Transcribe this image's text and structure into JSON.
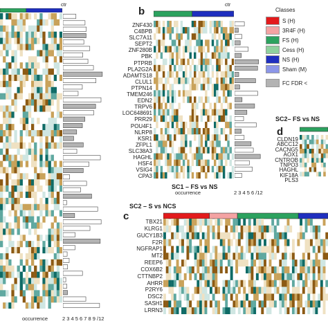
{
  "panel_b": {
    "letter": "b",
    "title": "SC1 – FS vs NS",
    "ctr_label": "ctr",
    "genes": [
      "ZNF430",
      "C4BPB",
      "SLC7A11",
      "SEPT2",
      "ZNF280B",
      "PBK",
      "PTPRB",
      "PLA2G2A",
      "ADAMTS18",
      "CLUL1",
      "PTPN14",
      "TMEM246",
      "EDN2",
      "TRPV6",
      "LOC648691",
      "PRR29",
      "POU4F1",
      "NLRP8",
      "KSR1",
      "ZFPL1",
      "SLC38A3",
      "HAGHL",
      "HSF4",
      "VSIG4",
      "CPA3"
    ],
    "occurrence_label": "occurrence",
    "occurrence_ticks": "2 3 4 5 6 /12"
  },
  "panel_a": {
    "ctr_label": "ctr",
    "occurrence_label": "occurrence",
    "occurrence_ticks": "2 3 4 5 6 7 8 9 /12"
  },
  "panel_c": {
    "letter": "c",
    "title": "SC2 – S vs NCS",
    "genes": [
      "TBX21",
      "KLRG1",
      "GUCY1B3",
      "F2R",
      "NGFRAP1",
      "MT2",
      "REEP6",
      "COX6B2",
      "CTTNBP2",
      "AHRR",
      "P2RY6",
      "DSC2",
      "SASH1",
      "LRRN3"
    ]
  },
  "panel_d": {
    "letter": "d",
    "title": "SC2– FS vs NS",
    "genes": [
      "CLDN19",
      "ABCC12",
      "CACNG5",
      "AOX1",
      "CNTROB",
      "TNPO3",
      "HAGHL",
      "KIF18A",
      "PLS3"
    ]
  },
  "legend": {
    "title": "Classes",
    "items": [
      {
        "label": "S (H)",
        "color": "#e31a1c"
      },
      {
        "label": "3R4F (H)",
        "color": "#f4a3a3"
      },
      {
        "label": "FS (H)",
        "color": "#2ca25f"
      },
      {
        "label": "Cess (H)",
        "color": "#8fd19e"
      },
      {
        "label": "NS (H)",
        "color": "#1f2fbf"
      },
      {
        "label": "Sham (M)",
        "color": "#8c96e8"
      }
    ],
    "fc_label": "FC FDR <"
  },
  "colors": {
    "teal_dark": "#0f6b66",
    "teal_mid": "#5fa8a0",
    "teal_light": "#cfe6e2",
    "brown_dark": "#8c5a14",
    "brown_mid": "#c9a25a",
    "brown_light": "#efe1c2",
    "bar_gray": "#b3b3b3"
  }
}
